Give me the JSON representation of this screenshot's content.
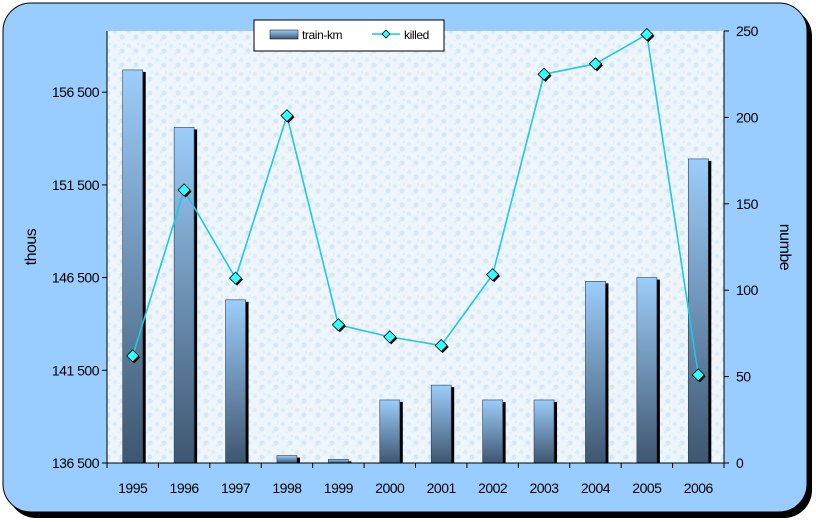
{
  "chart_data": {
    "type": "bar",
    "categories": [
      "1995",
      "1996",
      "1997",
      "1998",
      "1999",
      "2000",
      "2001",
      "2002",
      "2003",
      "2004",
      "2005",
      "2006"
    ],
    "series": [
      {
        "name": "train-km",
        "type": "bar",
        "axis": "left",
        "values": [
          157700,
          154600,
          145300,
          136900,
          136700,
          139900,
          140700,
          139900,
          139900,
          146300,
          146500,
          152900
        ]
      },
      {
        "name": "killed",
        "type": "line",
        "axis": "right",
        "values": [
          62,
          158,
          107,
          201,
          80,
          73,
          68,
          109,
          225,
          231,
          248,
          51
        ]
      }
    ],
    "y_left": {
      "label": "thous",
      "ylim": [
        136500,
        159800
      ],
      "ticks": [
        136500,
        141500,
        146500,
        151500,
        156500
      ],
      "tick_labels": [
        "136 500",
        "141 500",
        "146 500",
        "151 500",
        "156 500"
      ]
    },
    "y_right": {
      "label": "numbe",
      "ylim": [
        0,
        250
      ],
      "ticks": [
        0,
        50,
        100,
        150,
        200,
        250
      ],
      "tick_labels": [
        "0",
        "50",
        "100",
        "150",
        "200",
        "250"
      ]
    },
    "legend_position": "top-center",
    "grid": false,
    "colors": {
      "frame_fill": "#99ccff",
      "bar_top": "#9ccdfa",
      "bar_bottom": "#3e5670",
      "line": "#1ec8e6",
      "marker": "#33ffff"
    }
  }
}
